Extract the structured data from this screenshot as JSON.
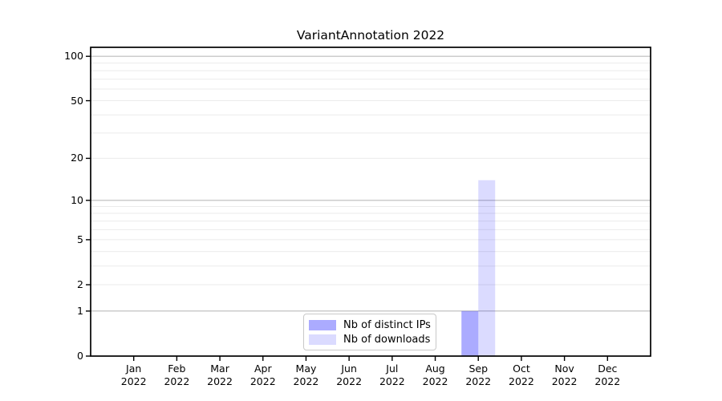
{
  "chart_data": {
    "type": "bar",
    "title": "VariantAnnotation 2022",
    "categories": [
      "Jan 2022",
      "Feb 2022",
      "Mar 2022",
      "Apr 2022",
      "May 2022",
      "Jun 2022",
      "Jul 2022",
      "Aug 2022",
      "Sep 2022",
      "Oct 2022",
      "Nov 2022",
      "Dec 2022"
    ],
    "series": [
      {
        "name": "Nb of distinct IPs",
        "color": "#0000ff",
        "opacity": 0.33,
        "values": [
          0,
          0,
          0,
          0,
          0,
          0,
          0,
          0,
          1,
          0,
          0,
          0
        ]
      },
      {
        "name": "Nb of downloads",
        "color": "#0000ff",
        "opacity": 0.14,
        "values": [
          0,
          0,
          0,
          0,
          0,
          0,
          0,
          0,
          14,
          0,
          0,
          0
        ]
      }
    ],
    "y_axis": {
      "scale": "log10(1+x)",
      "ticks": [
        0,
        1,
        2,
        5,
        10,
        20,
        50,
        100
      ],
      "tick_labels": [
        "0",
        "1",
        "2",
        "5",
        "10",
        "20",
        "50",
        "100"
      ],
      "major_gridlines": [
        1,
        10,
        100
      ],
      "minor_gridlines": [
        2,
        3,
        4,
        5,
        6,
        7,
        8,
        9,
        20,
        30,
        40,
        50,
        60,
        70,
        80,
        90
      ],
      "range": [
        0,
        115
      ]
    },
    "legend": {
      "position": "lower center inside"
    },
    "colors": {
      "axis": "#000000",
      "grid_major": "#bbbbbb",
      "grid_minor": "#ebebeb",
      "background": "#ffffff"
    }
  }
}
